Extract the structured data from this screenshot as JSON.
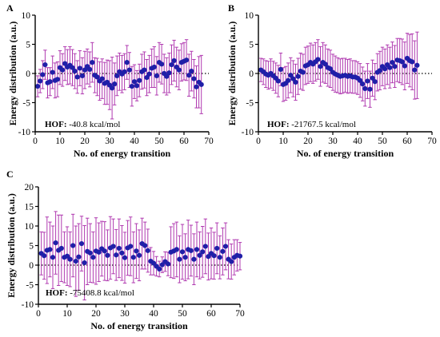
{
  "colors": {
    "point": "#1f1fa8",
    "error_bar": "#b03ab0",
    "axis": "#000000",
    "zero_line": "#000000"
  },
  "chart_data": [
    {
      "panel_letter": "A",
      "type": "scatter",
      "annotation_bold": "HOF:",
      "annotation_value": "-40.8 kcal/mol",
      "xlabel": "No. of energy transition",
      "ylabel": "Energy distribution (a.u.)",
      "xlim": [
        0,
        70
      ],
      "ylim": [
        -10,
        10
      ],
      "xticks": [
        0,
        10,
        20,
        30,
        40,
        50,
        60,
        70
      ],
      "yticks": [
        -10,
        -5,
        0,
        5,
        10
      ],
      "reference_line_y": 0,
      "x": [
        1,
        2,
        3,
        4,
        5,
        6,
        7,
        8,
        9,
        10,
        11,
        12,
        13,
        14,
        15,
        16,
        17,
        18,
        19,
        20,
        21,
        22,
        23,
        24,
        25,
        26,
        27,
        28,
        29,
        30,
        31,
        32,
        33,
        34,
        35,
        36,
        37,
        38,
        39,
        40,
        41,
        42,
        43,
        44,
        45,
        46,
        47,
        48,
        49,
        50,
        51,
        52,
        53,
        54,
        55,
        56,
        57,
        58,
        59,
        60,
        61,
        62,
        63,
        64,
        65,
        66,
        67
      ],
      "y": [
        -2.2,
        -1.3,
        -0.2,
        1.5,
        -1.6,
        -1.4,
        0.2,
        -1.2,
        -1.0,
        1.0,
        0.6,
        1.7,
        1.1,
        1.4,
        1.0,
        0.4,
        -0.6,
        0.9,
        -0.4,
        0.6,
        1.2,
        0.7,
        1.9,
        -0.3,
        -0.6,
        -1.3,
        -0.9,
        -1.7,
        -1.5,
        -2.0,
        -2.5,
        -1.8,
        -0.4,
        0.3,
        -0.1,
        0.3,
        1.9,
        0.6,
        -2.2,
        -1.4,
        -2.1,
        -1.2,
        0.3,
        0.6,
        -0.7,
        -0.1,
        0.9,
        1.1,
        -0.4,
        1.9,
        1.6,
        0.0,
        -0.5,
        0.1,
        1.5,
        2.2,
        1.1,
        0.6,
        1.9,
        2.1,
        2.3,
        -0.3,
        0.4,
        -0.9,
        -2.3,
        -1.5,
        -1.9
      ],
      "err": [
        1.8,
        2.0,
        2.4,
        2.5,
        2.6,
        2.4,
        2.8,
        3.0,
        3.0,
        2.9,
        2.8,
        2.9,
        3.0,
        3.2,
        3.1,
        3.0,
        2.8,
        3.0,
        3.1,
        3.2,
        3.0,
        3.0,
        3.4,
        3.0,
        3.2,
        3.3,
        3.4,
        3.6,
        3.8,
        4.2,
        5.3,
        3.6,
        3.4,
        3.2,
        3.2,
        3.1,
        2.9,
        3.0,
        3.4,
        2.9,
        2.6,
        2.8,
        3.0,
        3.1,
        3.1,
        3.2,
        3.3,
        3.5,
        3.3,
        3.4,
        3.4,
        3.3,
        3.2,
        3.4,
        3.4,
        3.5,
        3.4,
        3.4,
        3.2,
        3.2,
        3.5,
        3.6,
        3.4,
        3.3,
        3.6,
        4.4,
        5.0
      ]
    },
    {
      "panel_letter": "B",
      "type": "scatter",
      "annotation_bold": "HOF:",
      "annotation_value": "-21767.5 kcal/mol",
      "xlabel": "No. of energy transition",
      "ylabel": "Energy distribution (a.u.)",
      "xlim": [
        0,
        70
      ],
      "ylim": [
        -10,
        10
      ],
      "xticks": [
        0,
        10,
        20,
        30,
        40,
        50,
        60,
        70
      ],
      "yticks": [
        -10,
        -5,
        0,
        5,
        10
      ],
      "reference_line_y": 0,
      "x": [
        1,
        2,
        3,
        4,
        5,
        6,
        7,
        8,
        9,
        10,
        11,
        12,
        13,
        14,
        15,
        16,
        17,
        18,
        19,
        20,
        21,
        22,
        23,
        24,
        25,
        26,
        27,
        28,
        29,
        30,
        31,
        32,
        33,
        34,
        35,
        36,
        37,
        38,
        39,
        40,
        41,
        42,
        43,
        44,
        45,
        46,
        47,
        48,
        49,
        50,
        51,
        52,
        53,
        54,
        55,
        56,
        57,
        58,
        59,
        60,
        61,
        62,
        63,
        64
      ],
      "y": [
        0.6,
        0.3,
        -0.1,
        -0.3,
        0.0,
        -0.4,
        -0.8,
        -1.3,
        0.7,
        -1.9,
        -1.7,
        -1.2,
        -0.3,
        -0.9,
        -1.5,
        -0.5,
        0.4,
        0.2,
        1.3,
        1.5,
        1.9,
        1.6,
        2.0,
        2.4,
        1.2,
        1.9,
        1.6,
        1.0,
        0.8,
        0.2,
        -0.1,
        -0.3,
        -0.5,
        -0.4,
        -0.3,
        -0.5,
        -0.4,
        -0.6,
        -0.6,
        -0.8,
        -1.2,
        -1.8,
        -2.6,
        -1.3,
        -2.7,
        -0.8,
        -1.4,
        0.2,
        0.5,
        1.2,
        0.8,
        1.5,
        1.0,
        1.9,
        1.2,
        2.3,
        2.2,
        2.0,
        1.3,
        2.6,
        2.2,
        2.0,
        0.6,
        1.4
      ],
      "err": [
        2.0,
        2.2,
        2.3,
        2.4,
        2.5,
        2.5,
        2.6,
        2.7,
        2.8,
        2.9,
        2.9,
        3.0,
        3.0,
        3.1,
        3.1,
        3.1,
        3.1,
        3.1,
        3.2,
        3.2,
        3.3,
        3.3,
        3.3,
        3.4,
        3.4,
        3.4,
        3.3,
        3.2,
        3.2,
        3.1,
        3.1,
        3.0,
        3.0,
        3.0,
        2.9,
        2.9,
        2.9,
        2.8,
        2.8,
        2.8,
        2.9,
        2.9,
        3.0,
        3.0,
        3.1,
        3.1,
        3.1,
        3.2,
        3.3,
        3.3,
        3.4,
        3.4,
        3.5,
        3.5,
        3.6,
        3.7,
        3.8,
        3.9,
        4.1,
        4.3,
        4.5,
        4.8,
        5.0,
        5.7
      ]
    },
    {
      "panel_letter": "C",
      "type": "scatter",
      "annotation_bold": "HOF:",
      "annotation_value": "-75408.8 kcal/mol",
      "xlabel": "No. of energy transition",
      "ylabel": "Energy distribution (a.u.)",
      "xlim": [
        0,
        70
      ],
      "ylim": [
        -10,
        20
      ],
      "xticks": [
        0,
        10,
        20,
        30,
        40,
        50,
        60,
        70
      ],
      "yticks": [
        -10,
        -5,
        0,
        5,
        10,
        15,
        20
      ],
      "reference_line_y": 0,
      "x": [
        1,
        2,
        3,
        4,
        5,
        6,
        7,
        8,
        9,
        10,
        11,
        12,
        13,
        14,
        15,
        16,
        17,
        18,
        19,
        20,
        21,
        22,
        23,
        24,
        25,
        26,
        27,
        28,
        29,
        30,
        31,
        32,
        33,
        34,
        35,
        36,
        37,
        38,
        39,
        40,
        41,
        42,
        43,
        44,
        45,
        46,
        47,
        48,
        49,
        50,
        51,
        52,
        53,
        54,
        55,
        56,
        57,
        58,
        59,
        60,
        61,
        62,
        63,
        64,
        65,
        66,
        67,
        68,
        69,
        70
      ],
      "y": [
        3.0,
        2.4,
        3.8,
        4.0,
        2.0,
        5.7,
        3.8,
        4.3,
        2.0,
        2.3,
        1.5,
        5.0,
        1.0,
        2.1,
        5.5,
        0.6,
        3.5,
        3.1,
        2.0,
        3.6,
        3.3,
        4.2,
        3.6,
        2.5,
        4.4,
        4.8,
        2.6,
        4.3,
        3.1,
        1.9,
        4.4,
        4.8,
        2.0,
        3.6,
        2.5,
        5.5,
        5.0,
        3.7,
        1.0,
        0.5,
        -0.3,
        -1.0,
        0.1,
        0.9,
        0.3,
        3.3,
        3.6,
        4.0,
        1.5,
        3.4,
        2.0,
        4.0,
        3.7,
        1.5,
        4.0,
        2.5,
        3.4,
        4.8,
        2.2,
        3.0,
        2.4,
        4.3,
        2.0,
        3.5,
        4.8,
        1.5,
        0.9,
        2.0,
        2.5,
        2.3
      ],
      "err": [
        5.5,
        6.0,
        8.5,
        7.0,
        8.0,
        8.0,
        9.0,
        8.5,
        6.5,
        7.5,
        7.0,
        8.0,
        9.0,
        8.5,
        7.0,
        9.5,
        8.5,
        7.5,
        6.5,
        8.5,
        7.5,
        7.0,
        7.5,
        6.5,
        8.0,
        7.0,
        6.5,
        7.5,
        7.0,
        6.5,
        7.0,
        7.5,
        6.5,
        7.0,
        6.5,
        6.5,
        6.0,
        5.5,
        3.5,
        3.0,
        2.5,
        2.0,
        2.0,
        2.5,
        3.0,
        6.5,
        7.0,
        7.0,
        6.0,
        7.0,
        6.0,
        7.5,
        6.5,
        6.5,
        7.0,
        6.0,
        6.5,
        7.0,
        6.0,
        6.5,
        6.0,
        6.5,
        5.5,
        6.0,
        6.0,
        5.0,
        4.5,
        4.5,
        4.0,
        3.5
      ]
    }
  ]
}
